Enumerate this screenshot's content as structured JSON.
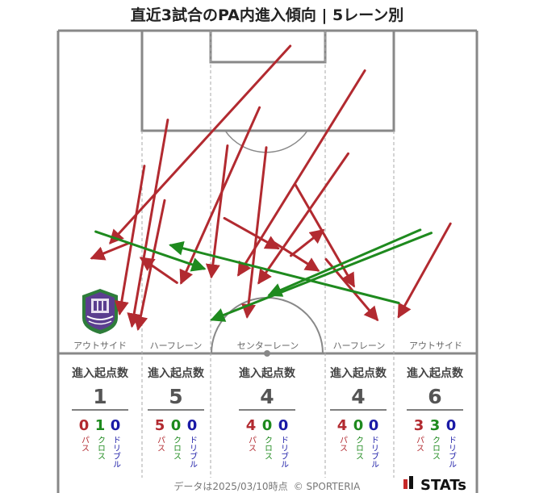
{
  "title": "直近3試合のPA内進入傾向 | 5レーン別",
  "footer": {
    "date_text": "データは2025/03/10時点",
    "copyright": "© SPORTERIA",
    "brand": "STATs"
  },
  "colors": {
    "pass": "#b22a30",
    "cross": "#1e8a1e",
    "dribble": "#1a1aa6",
    "pitch_line": "#888888",
    "lane_line": "#aaaaaa"
  },
  "lanes": [
    {
      "label": "アウトサイド",
      "stat_header": "進入起点数",
      "total": "1",
      "pass": "0",
      "cross": "1",
      "dribble": "0",
      "pass_label": "パス",
      "cross_label": "クロス",
      "dribble_label": "ドリブル"
    },
    {
      "label": "ハーフレーン",
      "stat_header": "進入起点数",
      "total": "5",
      "pass": "5",
      "cross": "0",
      "dribble": "0",
      "pass_label": "パス",
      "cross_label": "クロス",
      "dribble_label": "ドリブル"
    },
    {
      "label": "センターレーン",
      "stat_header": "進入起点数",
      "total": "4",
      "pass": "4",
      "cross": "0",
      "dribble": "0",
      "pass_label": "パス",
      "cross_label": "クロス",
      "dribble_label": "ドリブル"
    },
    {
      "label": "ハーフレーン",
      "stat_header": "進入起点数",
      "total": "4",
      "pass": "4",
      "cross": "0",
      "dribble": "0",
      "pass_label": "パス",
      "cross_label": "クロス",
      "dribble_label": "ドリブル"
    },
    {
      "label": "アウトサイド",
      "stat_header": "進入起点数",
      "total": "6",
      "pass": "3",
      "cross": "3",
      "dribble": "0",
      "pass_label": "パス",
      "cross_label": "クロス",
      "dribble_label": "ドリブル"
    }
  ],
  "chart_data": {
    "type": "scatter",
    "title": "直近3試合のPA内進入傾向 | 5レーン別",
    "description_units": "pitch coordinates: x = width from left touchline (0-68), y = distance from attacking goal line (0-52.5)",
    "xlim": [
      0,
      68
    ],
    "ylim": [
      0,
      52.5
    ],
    "series": [
      {
        "name": "パス",
        "arrows": [
          {
            "from": [
              14.0,
              22.0
            ],
            "to": [
              10.0,
              46.0
            ]
          },
          {
            "from": [
              17.8,
              14.5
            ],
            "to": [
              12.0,
              48.0
            ]
          },
          {
            "from": [
              17.3,
              27.6
            ],
            "to": [
              13.0,
              48.5
            ]
          },
          {
            "from": [
              11.4,
              34.6
            ],
            "to": [
              5.5,
              37.0
            ]
          },
          {
            "from": [
              32.7,
              12.5
            ],
            "to": [
              20.0,
              41.0
            ]
          },
          {
            "from": [
              19.3,
              41.0
            ],
            "to": [
              13.5,
              37.0
            ]
          },
          {
            "from": [
              37.7,
              2.5
            ],
            "to": [
              8.5,
              34.5
            ]
          },
          {
            "from": [
              27.5,
              18.7
            ],
            "to": [
              24.9,
              40.0
            ]
          },
          {
            "from": [
              33.8,
              19.0
            ],
            "to": [
              30.7,
              46.5
            ]
          },
          {
            "from": [
              27.0,
              30.5
            ],
            "to": [
              35.7,
              35.4
            ]
          },
          {
            "from": [
              47.1,
              20.0
            ],
            "to": [
              32.6,
              41.0
            ]
          },
          {
            "from": [
              49.8,
              6.5
            ],
            "to": [
              29.3,
              39.7
            ]
          },
          {
            "from": [
              37.8,
              36.6
            ],
            "to": [
              43.0,
              32.5
            ]
          },
          {
            "from": [
              34.5,
              34.1
            ],
            "to": [
              42.2,
              39.0
            ]
          },
          {
            "from": [
              38.5,
              25.0
            ],
            "to": [
              48.0,
              41.5
            ]
          },
          {
            "from": [
              43.5,
              37.2
            ],
            "to": [
              51.8,
              47.0
            ]
          },
          {
            "from": [
              63.7,
              31.4
            ],
            "to": [
              55.3,
              46.5
            ]
          }
        ]
      },
      {
        "name": "クロス",
        "arrows": [
          {
            "from": [
              6.1,
              32.7
            ],
            "to": [
              23.7,
              38.7
            ]
          },
          {
            "from": [
              58.8,
              32.4
            ],
            "to": [
              34.3,
              43.0
            ]
          },
          {
            "from": [
              60.6,
              32.9
            ],
            "to": [
              25.0,
              47.0
            ]
          },
          {
            "from": [
              55.3,
              44.3
            ],
            "to": [
              18.3,
              34.9
            ]
          }
        ]
      },
      {
        "name": "ドリブル",
        "arrows": []
      }
    ],
    "lanes": [
      "アウトサイド",
      "ハーフレーン",
      "センターレーン",
      "ハーフレーン",
      "アウトサイド"
    ],
    "totals": [
      1,
      5,
      4,
      4,
      6
    ]
  }
}
